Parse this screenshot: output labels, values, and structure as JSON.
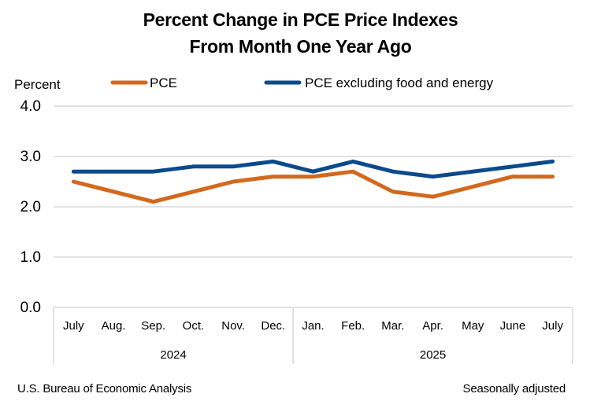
{
  "chart_data": {
    "type": "line",
    "title": "Percent Change in PCE Price Indexes",
    "subtitle": "From Month One Year Ago",
    "ylabel": "Percent",
    "xlabel": "",
    "ylim": [
      0,
      4
    ],
    "yticks": [
      "0.0",
      "1.0",
      "2.0",
      "3.0",
      "4.0"
    ],
    "ytick_values": [
      0,
      1,
      2,
      3,
      4
    ],
    "grid": true,
    "legend_position": "top",
    "categories": [
      "July",
      "Aug.",
      "Sep.",
      "Oct.",
      "Nov.",
      "Dec.",
      "Jan.",
      "Feb.",
      "Mar.",
      "Apr.",
      "May",
      "June",
      "July"
    ],
    "year_groups": [
      {
        "label": "2024",
        "count": 6
      },
      {
        "label": "2025",
        "count": 7
      }
    ],
    "series": [
      {
        "name": "PCE",
        "color": "#d2691e",
        "values": [
          2.5,
          2.3,
          2.1,
          2.3,
          2.5,
          2.6,
          2.6,
          2.7,
          2.3,
          2.2,
          2.4,
          2.6,
          2.6
        ]
      },
      {
        "name": "PCE excluding food and energy",
        "color": "#0b4a8b",
        "values": [
          2.7,
          2.7,
          2.7,
          2.8,
          2.8,
          2.9,
          2.7,
          2.9,
          2.7,
          2.6,
          2.7,
          2.8,
          2.9
        ]
      }
    ]
  },
  "footer": {
    "source": "U.S. Bureau of Economic Analysis",
    "note": "Seasonally adjusted"
  }
}
